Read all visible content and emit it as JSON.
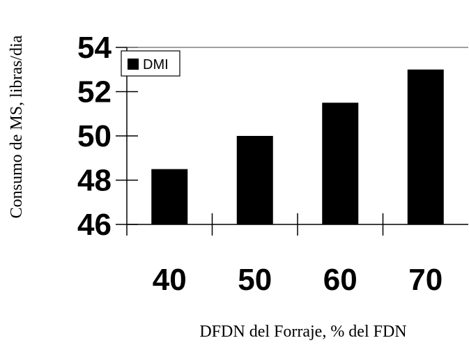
{
  "chart_data": {
    "type": "bar",
    "title": "",
    "xlabel": "DFDN del Forraje, % del FDN",
    "ylabel": "Consumo de MS, libras/dia",
    "categories": [
      "40",
      "50",
      "60",
      "70"
    ],
    "series": [
      {
        "name": "DMI",
        "values": [
          48.5,
          50.0,
          51.5,
          53.0
        ]
      }
    ],
    "ylim": [
      46,
      54
    ],
    "yticks": [
      "46",
      "48",
      "50",
      "52",
      "54"
    ],
    "grid": false,
    "legend": "top-left",
    "colors": {
      "bar": "#000000",
      "axis": "#000000",
      "top_line": "#808080"
    }
  }
}
